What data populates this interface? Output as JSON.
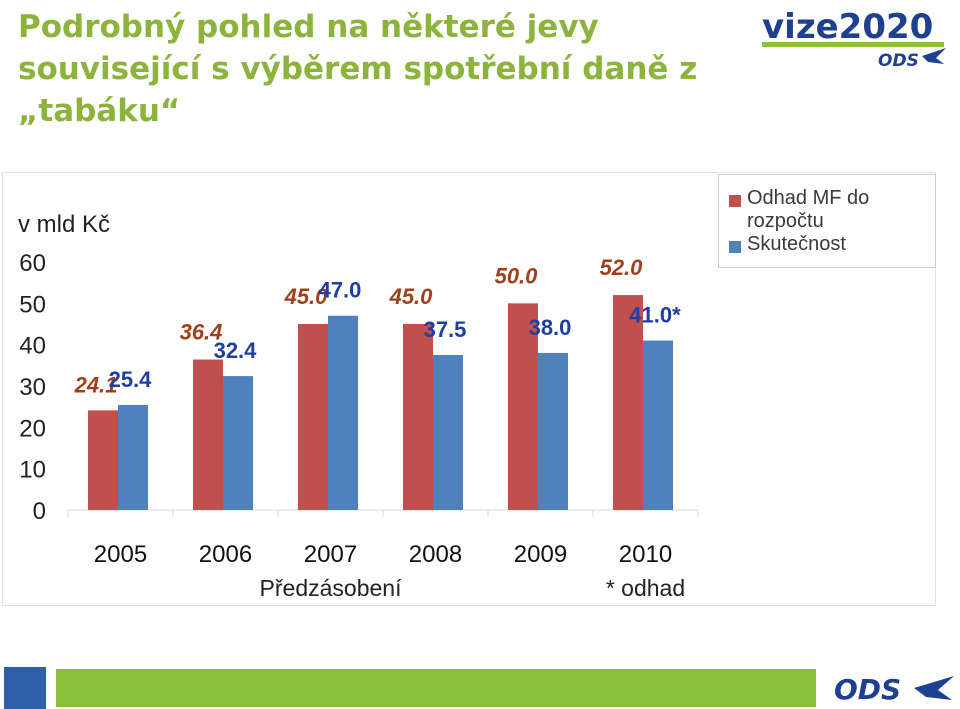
{
  "header": {
    "title": "Podrobný pohled na některé jevy související s výběrem spotřební daně z „tabáku“",
    "logo_text": "vize2020",
    "logo_sub": "ODS"
  },
  "footer": {
    "logo_text": "ODS"
  },
  "colors": {
    "title": "#8cb43c",
    "estimate": "#c0504d",
    "actual": "#4f81bd",
    "estimate_label": "#a0401a",
    "actual_label": "#1f3fa0",
    "footer_bar": "#8cc03c",
    "footer_square": "#2e5fa8",
    "logo_blue": "#1f3f8f"
  },
  "chart_data": {
    "type": "bar",
    "ylabel": "v mld Kč",
    "ylim": [
      0,
      60
    ],
    "yticks": [
      0,
      10,
      20,
      30,
      40,
      50,
      60
    ],
    "categories": [
      "2005",
      "2006",
      "2007",
      "2008",
      "2009",
      "2010"
    ],
    "category_notes": [
      "",
      "",
      "Předzásobení",
      "",
      "",
      "* odhad"
    ],
    "legend_position": "top-right",
    "grid": false,
    "series": [
      {
        "name": "Odhad MF do rozpočtu",
        "values": [
          24.1,
          36.4,
          45.0,
          45.0,
          50.0,
          52.0
        ],
        "labels": [
          "24.1",
          "36.4",
          "45.0",
          "45.0",
          "50.0",
          "52.0"
        ]
      },
      {
        "name": "Skutečnost",
        "values": [
          25.4,
          32.4,
          47.0,
          37.5,
          38.0,
          41.0
        ],
        "labels": [
          "25.4",
          "32.4",
          "47.0",
          "37.5",
          "38.0",
          "41.0*"
        ]
      }
    ]
  }
}
